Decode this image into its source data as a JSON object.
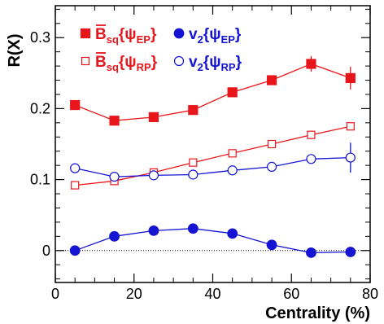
{
  "chart_data": {
    "type": "scatter",
    "ylabel": "R(X)",
    "xlabel": "Centrality (%)",
    "xlim": [
      0,
      80
    ],
    "ylim": [
      -0.045,
      0.345
    ],
    "x_ticks": [
      "0",
      "20",
      "40",
      "60",
      "80"
    ],
    "y_ticks": [
      "0",
      "0.1",
      "0.2",
      "0.3"
    ],
    "grid": false,
    "reference_line": 0,
    "legend_placement": "top",
    "x": [
      5,
      15,
      25,
      35,
      45,
      55,
      65,
      75
    ],
    "series": [
      {
        "name": "B̅sq{ψEP}",
        "name_parts": {
          "main": "B",
          "sub": "sq",
          "brace_open": "{ψ",
          "sub2": "EP",
          "brace_close": "}"
        },
        "color": "#e8161b",
        "marker": "filled-square",
        "values": [
          0.205,
          0.183,
          0.188,
          0.198,
          0.223,
          0.24,
          0.263,
          0.243
        ],
        "errors": [
          0,
          0,
          0,
          0,
          0,
          0,
          0.011,
          0.016
        ]
      },
      {
        "name": "B̅sq{ψRP}",
        "name_parts": {
          "main": "B",
          "sub": "sq",
          "brace_open": "{ψ",
          "sub2": "RP",
          "brace_close": "}"
        },
        "color": "#e8161b",
        "marker": "open-square",
        "values": [
          0.092,
          0.098,
          0.11,
          0.124,
          0.137,
          0.15,
          0.163,
          0.175
        ],
        "errors": [
          0,
          0,
          0,
          0,
          0,
          0,
          0,
          0
        ]
      },
      {
        "name": "v2{ψEP}",
        "name_parts": {
          "main": "v",
          "sub": "2",
          "brace_open": "{ψ",
          "sub2": "EP",
          "brace_close": "}"
        },
        "color": "#1414d2",
        "marker": "filled-circle",
        "values": [
          0.0,
          0.02,
          0.028,
          0.031,
          0.024,
          0.008,
          -0.003,
          -0.002
        ],
        "errors": [
          0,
          0,
          0,
          0,
          0,
          0,
          0,
          0.007
        ]
      },
      {
        "name": "v2{ψRP}",
        "name_parts": {
          "main": "v",
          "sub": "2",
          "brace_open": "{ψ",
          "sub2": "RP",
          "brace_close": "}"
        },
        "color": "#1414d2",
        "marker": "open-circle",
        "values": [
          0.116,
          0.104,
          0.106,
          0.107,
          0.113,
          0.118,
          0.129,
          0.131
        ],
        "errors": [
          0,
          0,
          0,
          0,
          0,
          0,
          0,
          0.021
        ]
      }
    ]
  }
}
